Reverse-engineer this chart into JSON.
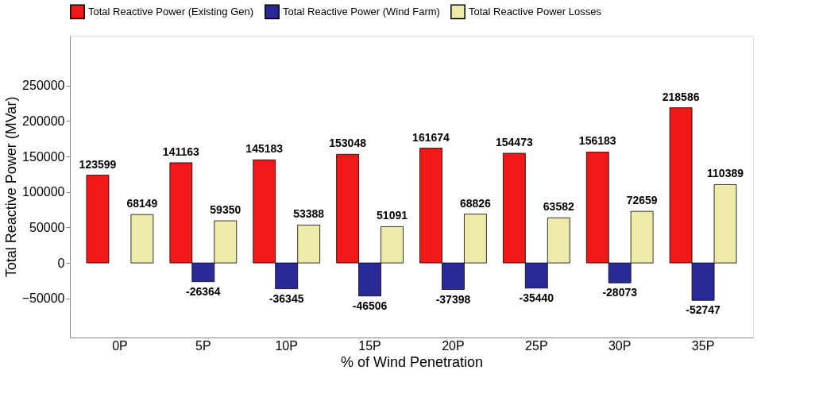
{
  "chart_data": {
    "type": "bar",
    "xlabel": "% of Wind Penetration",
    "ylabel": "Total Reactive Power (MVar)",
    "categories": [
      "0P",
      "5P",
      "10P",
      "15P",
      "20P",
      "25P",
      "30P",
      "35P"
    ],
    "series": [
      {
        "name": "Total Reactive Power (Existing Gen)",
        "color": "#f01818",
        "values": [
          123599,
          141163,
          145183,
          153048,
          161674,
          154473,
          156183,
          218586
        ]
      },
      {
        "name": "Total Reactive Power (Wind Farm)",
        "color": "#2a2a96",
        "values": [
          null,
          -26364,
          -36345,
          -46506,
          -37398,
          -35440,
          -28073,
          -52747
        ]
      },
      {
        "name": "Total Reactive Power Losses",
        "color": "#eeeaa8",
        "values": [
          68149,
          59350,
          53388,
          51091,
          68826,
          63582,
          72659,
          110389
        ]
      }
    ],
    "ylim": [
      -105000,
      320000
    ],
    "yticks": [
      -50000,
      0,
      50000,
      100000,
      150000,
      200000,
      250000
    ],
    "data_labels": true,
    "grid": false,
    "legend": "top"
  }
}
